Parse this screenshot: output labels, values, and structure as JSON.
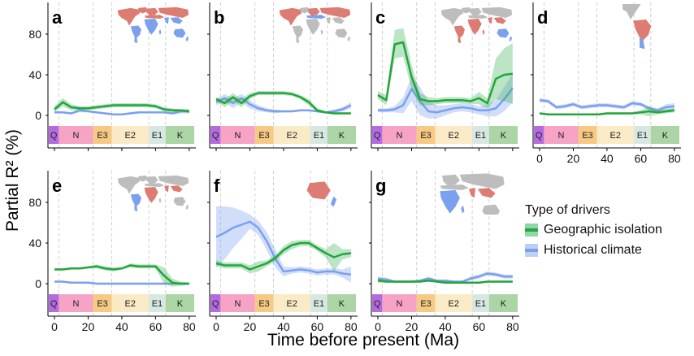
{
  "axis": {
    "y_label": "Partial R² (%)",
    "x_label": "Time before present (Ma)",
    "y_ticks": [
      0,
      40,
      80
    ],
    "x_ticks": [
      0,
      20,
      40,
      60,
      80
    ],
    "x_max": 82,
    "grid_lines_at": [
      2.6,
      23,
      34,
      56,
      66
    ]
  },
  "legend": {
    "title": "Type of drivers",
    "entries": [
      {
        "label": "Geographic isolation",
        "line_color": "#2aa44a",
        "band_color": "#8fd8a4"
      },
      {
        "label": "Historical climate",
        "line_color": "#7d9fe8",
        "band_color": "#bcd0f5"
      }
    ]
  },
  "colors": {
    "green_line": "#23a53c",
    "green_band": "rgba(60,180,90,0.35)",
    "blue_line": "#7aa0ef",
    "blue_band": "rgba(122,160,239,0.35)",
    "map_red": "#dd7c72",
    "map_blue": "#7aa0ee",
    "map_grey": "#bdbdbd",
    "grid": "#cfcfcf",
    "axis": "#000000",
    "strip_text": "#222222"
  },
  "periods": [
    {
      "label": "Q",
      "start": 0,
      "end": 2.6,
      "color": "#b46be0"
    },
    {
      "label": "N",
      "start": 2.6,
      "end": 23,
      "color": "#f6a3c5"
    },
    {
      "label": "E3",
      "start": 23,
      "end": 34,
      "color": "#f6ca84"
    },
    {
      "label": "E2",
      "start": 34,
      "end": 56,
      "color": "#faeac6"
    },
    {
      "label": "E1",
      "start": 56,
      "end": 66,
      "color": "#d7e8e2"
    },
    {
      "label": "K",
      "start": 66,
      "end": 82,
      "color": "#abd5a5"
    }
  ],
  "chart_data": {
    "type": "line",
    "x": [
      0,
      5,
      10,
      15,
      20,
      25,
      30,
      35,
      40,
      45,
      50,
      55,
      60,
      65,
      70,
      75,
      80
    ],
    "xlabel": "Time before present (Ma)",
    "ylabel": "Partial R² (%)",
    "ylim": [
      -5,
      100
    ],
    "panels": [
      {
        "letter": "a",
        "show_x_labels": false,
        "show_y_labels": true,
        "map": {
          "crop": "world",
          "regions": {
            "GL": "red",
            "NA": "red",
            "EU": "red",
            "MED": "red",
            "AS": "red",
            "SA_n": "blue",
            "SA_s": "blue",
            "AF": "blue",
            "MAD": "blue",
            "IN": "blue",
            "SEA": "blue",
            "AU": "blue",
            "NZ": "blue"
          }
        },
        "green": {
          "y": [
            6,
            13,
            8,
            7,
            7,
            8,
            9,
            10,
            10,
            10,
            10,
            10,
            9,
            6,
            5,
            5,
            4
          ],
          "band": [
            3,
            4,
            3,
            2,
            2,
            2,
            2,
            2,
            2,
            2,
            2,
            2,
            2,
            2,
            2,
            1,
            2
          ]
        },
        "blue": {
          "y": [
            3,
            3,
            2,
            5,
            4,
            3,
            2,
            1,
            1,
            2,
            3,
            3,
            3,
            3,
            2,
            4,
            4
          ],
          "band": [
            1,
            1,
            1,
            2,
            1,
            1,
            1,
            1,
            1,
            1,
            1,
            1,
            1,
            1,
            1,
            2,
            2
          ]
        }
      },
      {
        "letter": "b",
        "show_x_labels": false,
        "show_y_labels": false,
        "map": {
          "crop": "world",
          "regions": {
            "GL": "grey",
            "NA": "red",
            "EU": "red",
            "MED": "blue",
            "AS": "red",
            "SA_n": "grey",
            "SA_s": "grey",
            "AF": "grey",
            "MAD": "grey",
            "IN": "grey",
            "SEA": "grey",
            "AU": "grey",
            "NZ": "grey"
          }
        },
        "green": {
          "y": [
            16,
            12,
            18,
            12,
            19,
            22,
            22,
            22,
            22,
            21,
            18,
            13,
            5,
            3,
            2,
            2,
            2
          ],
          "band": [
            2,
            4,
            4,
            4,
            3,
            2,
            2,
            2,
            2,
            2,
            2,
            3,
            2,
            1,
            1,
            1,
            1
          ]
        },
        "blue": {
          "y": [
            13,
            17,
            12,
            17,
            11,
            7,
            5,
            4,
            4,
            4,
            5,
            5,
            4,
            3,
            4,
            6,
            10
          ],
          "band": [
            3,
            4,
            5,
            4,
            4,
            3,
            2,
            2,
            1,
            1,
            1,
            1,
            1,
            1,
            2,
            2,
            3
          ]
        }
      },
      {
        "letter": "c",
        "show_x_labels": false,
        "show_y_labels": false,
        "map": {
          "crop": "world",
          "regions": {
            "GL": "grey",
            "NA": "grey",
            "EU": "grey",
            "MED": "grey",
            "AS": "grey",
            "SA_n": "red",
            "SA_s": "red",
            "AF": "red",
            "MAD": "red",
            "IN": "red",
            "SEA": "red",
            "AU": "blue",
            "NZ": "blue"
          }
        },
        "green": {
          "y": [
            20,
            15,
            70,
            72,
            38,
            16,
            14,
            14,
            15,
            15,
            15,
            14,
            17,
            12,
            36,
            40,
            41
          ],
          "band": [
            4,
            5,
            14,
            14,
            12,
            6,
            4,
            3,
            3,
            3,
            3,
            3,
            6,
            5,
            20,
            26,
            30
          ]
        },
        "blue": {
          "y": [
            5,
            5,
            6,
            10,
            26,
            14,
            4,
            3,
            5,
            7,
            8,
            7,
            5,
            5,
            7,
            16,
            27
          ],
          "band": [
            2,
            2,
            3,
            8,
            12,
            14,
            10,
            7,
            5,
            4,
            4,
            4,
            4,
            6,
            8,
            12,
            14
          ]
        }
      },
      {
        "letter": "d",
        "show_x_labels": true,
        "show_y_labels": false,
        "map": {
          "crop": "americas",
          "regions": {
            "NA": "grey",
            "SA_n": "red",
            "SA_s": "blue"
          }
        },
        "green": {
          "y": [
            2,
            1,
            1,
            1,
            1,
            1,
            1,
            1,
            2,
            2,
            2,
            2,
            3,
            4,
            3,
            4,
            5
          ],
          "band": [
            1,
            1,
            1,
            1,
            1,
            1,
            1,
            1,
            1,
            1,
            1,
            1,
            2,
            5,
            2,
            2,
            2
          ]
        },
        "blue": {
          "y": [
            15,
            14,
            8,
            9,
            11,
            8,
            9,
            10,
            10,
            9,
            8,
            12,
            11,
            7,
            5,
            8,
            9
          ],
          "band": [
            2,
            2,
            2,
            2,
            2,
            2,
            2,
            2,
            2,
            2,
            2,
            2,
            2,
            2,
            2,
            3,
            3
          ]
        }
      },
      {
        "letter": "e",
        "show_x_labels": true,
        "show_y_labels": true,
        "map": {
          "crop": "world",
          "regions": {
            "GL": "grey",
            "NA": "grey",
            "EU": "grey",
            "MED": "grey",
            "AS": "grey",
            "SA_n": "blue",
            "SA_s": "blue",
            "AF": "red",
            "MAD": "grey",
            "IN": "red",
            "SEA": "red",
            "AU": "grey",
            "NZ": "grey"
          }
        },
        "green": {
          "y": [
            14,
            14,
            15,
            15,
            16,
            17,
            15,
            14,
            15,
            18,
            17,
            17,
            17,
            8,
            1,
            0,
            0
          ],
          "band": [
            1,
            1,
            1,
            1,
            1,
            2,
            2,
            2,
            1,
            2,
            2,
            2,
            2,
            8,
            4,
            2,
            1
          ]
        },
        "blue": {
          "y": [
            2,
            2,
            1,
            1,
            1,
            0,
            0,
            0,
            0,
            0,
            0,
            0,
            0,
            0,
            0,
            0,
            0
          ],
          "band": [
            1,
            1,
            1,
            1,
            1,
            1,
            1,
            1,
            1,
            1,
            1,
            1,
            1,
            1,
            1,
            1,
            1
          ]
        }
      },
      {
        "letter": "f",
        "show_x_labels": true,
        "show_y_labels": false,
        "map": {
          "crop": "australasia",
          "regions": {
            "SEA": "grey",
            "AU": "red",
            "NZ": "blue"
          }
        },
        "green": {
          "y": [
            20,
            18,
            18,
            18,
            14,
            17,
            20,
            25,
            33,
            38,
            40,
            40,
            35,
            30,
            26,
            29,
            30
          ],
          "band": [
            3,
            3,
            3,
            3,
            4,
            5,
            3,
            3,
            4,
            4,
            3,
            3,
            3,
            4,
            14,
            5,
            4
          ]
        },
        "blue": {
          "y": [
            46,
            50,
            55,
            58,
            61,
            55,
            42,
            25,
            12,
            13,
            14,
            13,
            11,
            12,
            12,
            10,
            9
          ],
          "band": [
            30,
            26,
            20,
            14,
            7,
            7,
            9,
            9,
            5,
            3,
            3,
            3,
            3,
            3,
            3,
            4,
            8
          ]
        }
      },
      {
        "letter": "g",
        "show_x_labels": true,
        "show_y_labels": false,
        "map": {
          "crop": "africa-asia",
          "regions": {
            "EU": "grey",
            "MED": "grey",
            "AS": "grey",
            "AF": "blue",
            "MAD": "blue",
            "IN": "red",
            "SEA": "red",
            "AU": "grey"
          }
        },
        "green": {
          "y": [
            3,
            2,
            2,
            2,
            2,
            2,
            3,
            2,
            1,
            1,
            1,
            1,
            1,
            2,
            2,
            2,
            2
          ],
          "band": [
            2,
            1,
            1,
            1,
            1,
            1,
            1,
            1,
            1,
            1,
            1,
            1,
            1,
            1,
            1,
            1,
            1
          ]
        },
        "blue": {
          "y": [
            5,
            4,
            2,
            2,
            2,
            3,
            5,
            3,
            3,
            2,
            2,
            5,
            7,
            10,
            9,
            7,
            7
          ],
          "band": [
            2,
            2,
            1,
            1,
            1,
            1,
            2,
            1,
            1,
            1,
            1,
            2,
            2,
            2,
            2,
            2,
            2
          ]
        }
      }
    ]
  }
}
